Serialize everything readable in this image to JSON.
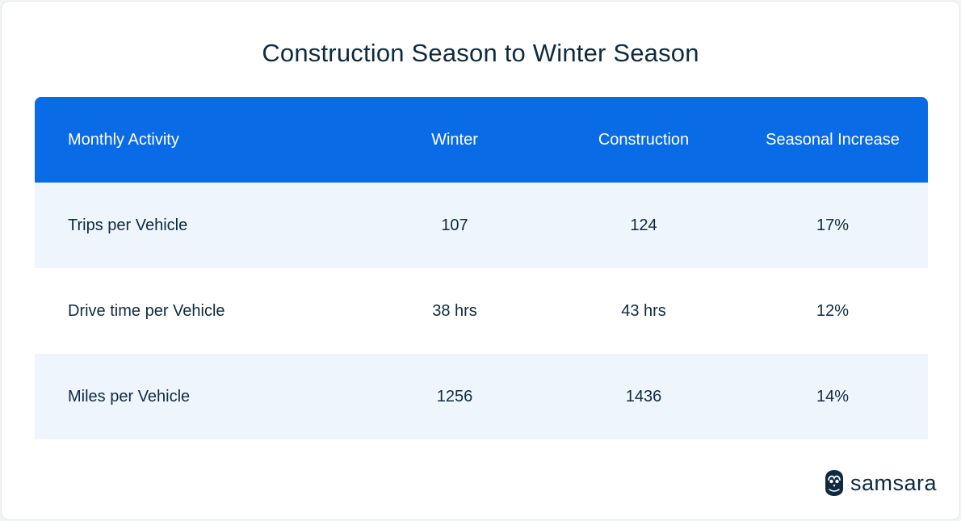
{
  "chart_data": {
    "type": "table",
    "title": "Construction Season to Winter Season",
    "columns": [
      "Monthly Activity",
      "Winter",
      "Construction",
      "Seasonal Increase"
    ],
    "rows": [
      [
        "Trips per Vehicle",
        "107",
        "124",
        "17%"
      ],
      [
        "Drive time per Vehicle",
        "38 hrs",
        "43 hrs",
        "12%"
      ],
      [
        "Miles per Vehicle",
        "1256",
        "1436",
        "14%"
      ]
    ]
  },
  "brand": {
    "name": "samsara",
    "icon": "owl-logo-icon"
  },
  "colors": {
    "header": "#0a6be6",
    "row_shade": "#eff5fd",
    "text": "#0f2a3f"
  }
}
